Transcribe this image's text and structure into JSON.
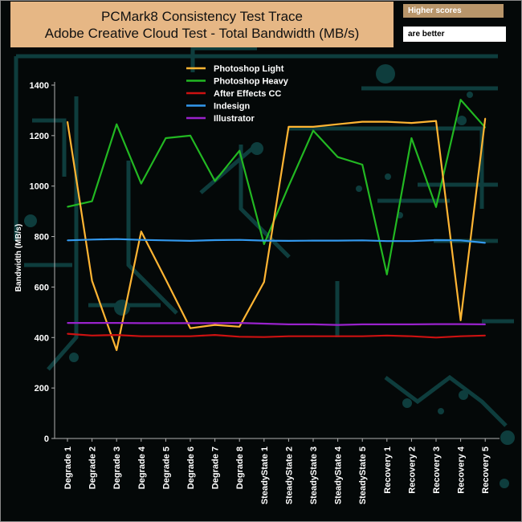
{
  "header": {
    "title_line1": "PCMark8 Consistency Test Trace",
    "title_line2": "Adobe Creative Cloud Test - Total Bandwidth (MB/s)",
    "note_line1": "Higher scores",
    "note_line2": "are better"
  },
  "colors": {
    "axis": "#b0b0b0",
    "decor": "#0e3d3d"
  },
  "chart_data": {
    "type": "line",
    "title": "PCMark8 Consistency Test Trace",
    "subtitle": "Adobe Creative Cloud Test - Total Bandwidth (MB/s)",
    "ylabel": "Bandwidth (MB/s)",
    "xlabel": "",
    "ylim": [
      0,
      1400
    ],
    "yticks": [
      0,
      200,
      400,
      600,
      800,
      1000,
      1200,
      1400
    ],
    "grid": false,
    "legend_position": "top-center",
    "categories": [
      "Degrade 1",
      "Degrade 2",
      "Degrade 3",
      "Degrade 4",
      "Degrade 5",
      "Degrade 6",
      "Degrade 7",
      "Degrade 8",
      "SteadyState 1",
      "SteadyState 2",
      "SteadyState 3",
      "SteadyState 4",
      "SteadyState 5",
      "Recovery 1",
      "Recovery 2",
      "Recovery 3",
      "Recovery 4",
      "Recovery 5"
    ],
    "series": [
      {
        "name": "Photoshop Light",
        "color": "#ffb533",
        "values": [
          1255,
          625,
          350,
          820,
          630,
          437,
          450,
          443,
          620,
          1235,
          1235,
          1245,
          1255,
          1255,
          1250,
          1258,
          468,
          1268
        ]
      },
      {
        "name": " Photoshop Heavy",
        "color": "#22b822",
        "values": [
          918,
          940,
          1245,
          1010,
          1190,
          1200,
          1020,
          1140,
          770,
          1000,
          1220,
          1115,
          1085,
          650,
          1190,
          917,
          1342,
          1232
        ]
      },
      {
        "name": "After Effects CC",
        "color": "#cc1111",
        "values": [
          415,
          408,
          410,
          405,
          405,
          405,
          410,
          403,
          402,
          405,
          405,
          405,
          405,
          408,
          405,
          400,
          405,
          408
        ]
      },
      {
        "name": "Indesign",
        "color": "#3399ee",
        "values": [
          785,
          788,
          790,
          787,
          785,
          783,
          786,
          787,
          784,
          783,
          784,
          784,
          785,
          782,
          782,
          786,
          785,
          775
        ]
      },
      {
        "name": "Illustrator",
        "color": "#9922cc",
        "values": [
          458,
          458,
          458,
          457,
          457,
          457,
          457,
          458,
          455,
          452,
          452,
          450,
          452,
          452,
          452,
          453,
          453,
          452
        ]
      }
    ]
  }
}
